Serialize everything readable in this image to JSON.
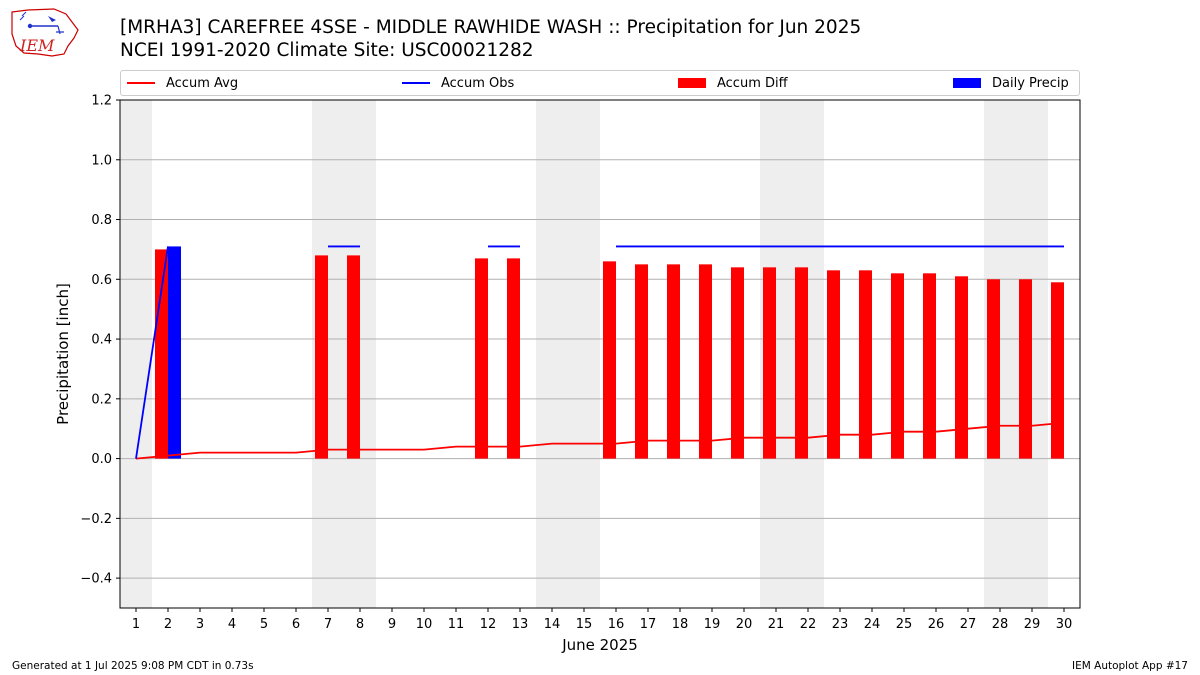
{
  "header": {
    "title_line1": "[MRHA3] CAREFREE 4SSE - MIDDLE RAWHIDE WASH :: Precipitation for Jun 2025",
    "title_line2": "NCEI 1991-2020 Climate Site: USC00021282",
    "logo_text": "IEM"
  },
  "legend": {
    "items": [
      {
        "label": "Accum Avg",
        "kind": "line",
        "color": "#ff0000"
      },
      {
        "label": "Accum Obs",
        "kind": "line",
        "color": "#0000ff"
      },
      {
        "label": "Accum Diff",
        "kind": "box",
        "color": "#ff0000"
      },
      {
        "label": "Daily Precip",
        "kind": "box",
        "color": "#0000ff"
      }
    ]
  },
  "footer": {
    "left": "Generated at 1 Jul 2025 9:08 PM CDT in 0.73s",
    "right": "IEM Autoplot App #17"
  },
  "chart_data": {
    "type": "bar",
    "xlabel": "June 2025",
    "ylabel": "Precipitation [inch]",
    "xlim": [
      0.5,
      30.5
    ],
    "ylim": [
      -0.5,
      1.2
    ],
    "x": [
      1,
      2,
      3,
      4,
      5,
      6,
      7,
      8,
      9,
      10,
      11,
      12,
      13,
      14,
      15,
      16,
      17,
      18,
      19,
      20,
      21,
      22,
      23,
      24,
      25,
      26,
      27,
      28,
      29,
      30
    ],
    "x_ticks": [
      "1",
      "2",
      "3",
      "4",
      "5",
      "6",
      "7",
      "8",
      "9",
      "10",
      "11",
      "12",
      "13",
      "14",
      "15",
      "16",
      "17",
      "18",
      "19",
      "20",
      "21",
      "22",
      "23",
      "24",
      "25",
      "26",
      "27",
      "28",
      "29",
      "30"
    ],
    "y_ticks": [
      "−0.4",
      "−0.2",
      "0.0",
      "0.2",
      "0.4",
      "0.6",
      "0.8",
      "1.0",
      "1.2"
    ],
    "y_tick_values": [
      -0.4,
      -0.2,
      0.0,
      0.2,
      0.4,
      0.6,
      0.8,
      1.0,
      1.2
    ],
    "grid": "horizontal",
    "weekend_shading": [
      [
        0.5,
        1.5
      ],
      [
        6.5,
        8.5
      ],
      [
        13.5,
        15.5
      ],
      [
        20.5,
        22.5
      ],
      [
        27.5,
        29.5
      ]
    ],
    "series": [
      {
        "name": "Accum Avg",
        "kind": "line",
        "color": "#ff0000",
        "values": [
          0.0,
          0.01,
          0.02,
          0.02,
          0.02,
          0.02,
          0.03,
          0.03,
          0.03,
          0.03,
          0.04,
          0.04,
          0.04,
          0.05,
          0.05,
          0.05,
          0.06,
          0.06,
          0.06,
          0.07,
          0.07,
          0.07,
          0.08,
          0.08,
          0.09,
          0.09,
          0.1,
          0.11,
          0.11,
          0.12
        ]
      },
      {
        "name": "Accum Obs",
        "kind": "line",
        "color": "#0000ff",
        "segments": [
          {
            "x": [
              1,
              2
            ],
            "values": [
              0.0,
              0.71
            ]
          },
          {
            "x": [
              7,
              8
            ],
            "values": [
              0.71,
              0.71
            ]
          },
          {
            "x": [
              12,
              13
            ],
            "values": [
              0.71,
              0.71
            ]
          },
          {
            "x": [
              16,
              17,
              18,
              19,
              20,
              21,
              22,
              23,
              24,
              25,
              26,
              27,
              28,
              29,
              30
            ],
            "values": [
              0.71,
              0.71,
              0.71,
              0.71,
              0.71,
              0.71,
              0.71,
              0.71,
              0.71,
              0.71,
              0.71,
              0.71,
              0.71,
              0.71,
              0.71
            ]
          }
        ]
      },
      {
        "name": "Accum Diff",
        "kind": "bar",
        "color": "#ff0000",
        "x": [
          2,
          7,
          8,
          12,
          13,
          16,
          17,
          18,
          19,
          20,
          21,
          22,
          23,
          24,
          25,
          26,
          27,
          28,
          29,
          30
        ],
        "values": [
          0.7,
          0.68,
          0.68,
          0.67,
          0.67,
          0.66,
          0.65,
          0.65,
          0.65,
          0.64,
          0.64,
          0.64,
          0.63,
          0.63,
          0.62,
          0.62,
          0.61,
          0.6,
          0.6,
          0.59
        ]
      },
      {
        "name": "Daily Precip",
        "kind": "bar",
        "color": "#0000ff",
        "x": [
          2
        ],
        "values": [
          0.71
        ]
      }
    ]
  }
}
